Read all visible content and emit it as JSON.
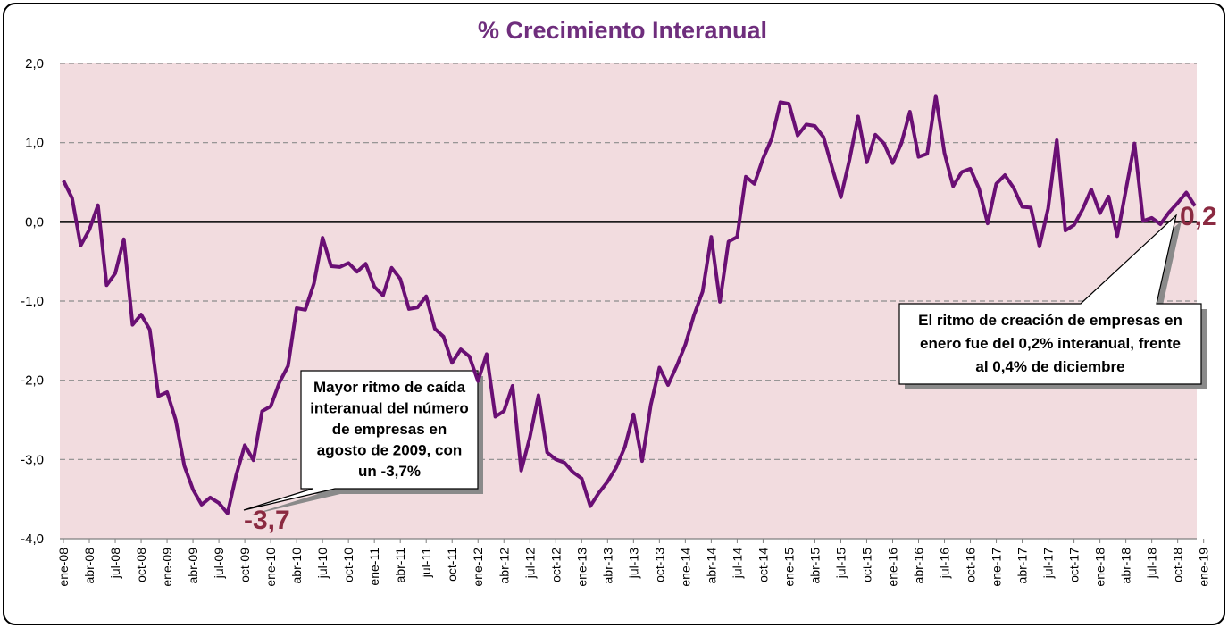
{
  "chart_data": {
    "type": "line",
    "title": "% Crecimiento Interanual",
    "xlabel": "",
    "ylabel": "",
    "ylim": [
      -4.0,
      2.0
    ],
    "yticks": [
      2.0,
      1.0,
      0.0,
      -1.0,
      -2.0,
      -3.0,
      -4.0
    ],
    "ytick_labels": [
      "2,0",
      "1,0",
      "0,0",
      "-1,0",
      "-2,0",
      "-3,0",
      "-4,0"
    ],
    "grid": true,
    "x_tick_labels": [
      "ene-08",
      "abr-08",
      "jul-08",
      "oct-08",
      "ene-09",
      "abr-09",
      "jul-09",
      "oct-09",
      "ene-10",
      "abr-10",
      "jul-10",
      "oct-10",
      "ene-11",
      "abr-11",
      "jul-11",
      "oct-11",
      "ene-12",
      "abr-12",
      "jul-12",
      "oct-12",
      "ene-13",
      "abr-13",
      "jul-13",
      "oct-13",
      "ene-14",
      "abr-14",
      "jul-14",
      "oct-14",
      "ene-15",
      "abr-15",
      "jul-15",
      "oct-15",
      "ene-16",
      "abr-16",
      "jul-16",
      "oct-16",
      "ene-17",
      "abr-17",
      "jul-17",
      "oct-17",
      "ene-18",
      "abr-18",
      "jul-18",
      "oct-18",
      "ene-19"
    ],
    "series": [
      {
        "name": "% Crecimiento Interanual",
        "color": "#6a0f74",
        "start": "ene-08",
        "values": [
          0.52,
          0.3,
          -0.3,
          -0.1,
          0.21,
          -0.8,
          -0.65,
          -0.22,
          -1.3,
          -1.17,
          -1.36,
          -2.2,
          -2.15,
          -2.5,
          -3.08,
          -3.38,
          -3.57,
          -3.48,
          -3.55,
          -3.68,
          -3.2,
          -2.82,
          -3.01,
          -2.39,
          -2.33,
          -2.03,
          -1.82,
          -1.09,
          -1.11,
          -0.78,
          -0.2,
          -0.56,
          -0.57,
          -0.52,
          -0.63,
          -0.53,
          -0.82,
          -0.93,
          -0.58,
          -0.72,
          -1.1,
          -1.08,
          -0.94,
          -1.35,
          -1.45,
          -1.78,
          -1.61,
          -1.7,
          -2.01,
          -1.67,
          -2.46,
          -2.39,
          -2.07,
          -3.14,
          -2.72,
          -2.19,
          -2.91,
          -3.0,
          -3.04,
          -3.16,
          -3.24,
          -3.59,
          -3.42,
          -3.28,
          -3.1,
          -2.84,
          -2.43,
          -3.02,
          -2.31,
          -1.84,
          -2.06,
          -1.82,
          -1.55,
          -1.18,
          -0.88,
          -0.19,
          -1.01,
          -0.25,
          -0.19,
          0.57,
          0.48,
          0.8,
          1.05,
          1.51,
          1.49,
          1.09,
          1.23,
          1.21,
          1.07,
          0.68,
          0.31,
          0.78,
          1.33,
          0.75,
          1.1,
          0.99,
          0.74,
          0.99,
          1.39,
          0.82,
          0.86,
          1.59,
          0.87,
          0.45,
          0.63,
          0.67,
          0.42,
          -0.02,
          0.48,
          0.59,
          0.43,
          0.19,
          0.18,
          -0.31,
          0.17,
          1.03,
          -0.11,
          -0.04,
          0.16,
          0.41,
          0.11,
          0.32,
          -0.18,
          0.4,
          0.99,
          0.01,
          0.05,
          -0.03,
          0.12,
          0.24,
          0.37,
          0.2
        ]
      }
    ],
    "annotations": [
      {
        "id": "min",
        "label": "-3,7",
        "point": "ago-09",
        "box_lines": [
          "Mayor ritmo de caída",
          "interanual del número",
          "de empresas en",
          "agosto de 2009,  con",
          "un -3,7%"
        ]
      },
      {
        "id": "last",
        "label": "0,2",
        "point": "ene-19",
        "box_lines": [
          "El ritmo de creación de empresas en",
          "enero fue del 0,2% interanual, frente",
          "al 0,4% de diciembre"
        ]
      }
    ],
    "colors": {
      "plot_background": "#f2dcdf",
      "line": "#6a0f74",
      "zero_line": "#000000",
      "grid": "#8c8c8c",
      "title": "#6f2e7d",
      "callout_label": "#8b2a41"
    }
  }
}
